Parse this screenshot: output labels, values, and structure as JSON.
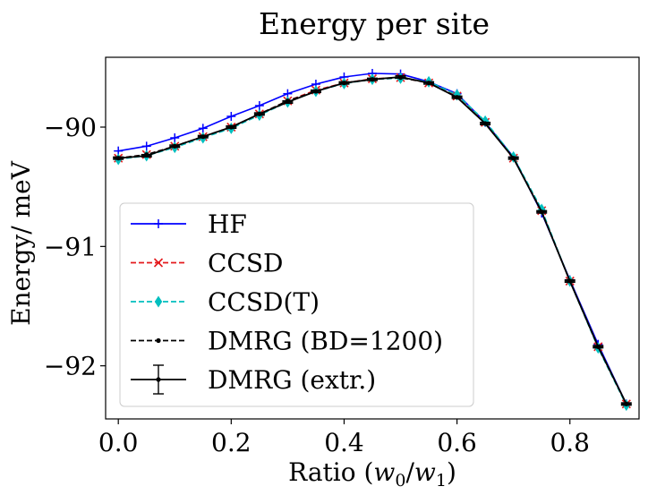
{
  "chart_data": {
    "type": "line",
    "title": "Energy per site",
    "xlabel": "Ratio (w0/w1)",
    "xlabel_parts": {
      "prefix": "Ratio (",
      "var1": "w",
      "sub1": "0",
      "slash": "/",
      "var2": "w",
      "sub2": "1",
      "suffix": ")"
    },
    "ylabel": "Energy/ meV",
    "xlim": [
      -0.0225,
      0.9225
    ],
    "ylim": [
      -92.445,
      -89.415
    ],
    "x_ticks": [
      0.0,
      0.2,
      0.4,
      0.6,
      0.8
    ],
    "x_tick_labels": [
      "0.0",
      "0.2",
      "0.4",
      "0.6",
      "0.8"
    ],
    "y_ticks": [
      -92,
      -91,
      -90
    ],
    "y_tick_labels": [
      "−92",
      "−91",
      "−90"
    ],
    "grid": false,
    "legend_position": "lower-left",
    "x": [
      0.0,
      0.05,
      0.1,
      0.15,
      0.2,
      0.25,
      0.3,
      0.35,
      0.4,
      0.45,
      0.5,
      0.55,
      0.6,
      0.65,
      0.7,
      0.75,
      0.8,
      0.85,
      0.9
    ],
    "series": [
      {
        "name": "HF",
        "color": "#0000ff",
        "dash": "solid",
        "marker": "plus",
        "values": [
          -90.2,
          -90.16,
          -90.09,
          -90.01,
          -89.91,
          -89.82,
          -89.72,
          -89.64,
          -89.58,
          -89.55,
          -89.555,
          -89.62,
          -89.72,
          -89.96,
          -90.25,
          -90.72,
          -91.28,
          -91.82,
          -92.32
        ]
      },
      {
        "name": "CCSD",
        "color": "#e41a1c",
        "dash": "dashed",
        "marker": "x",
        "values": [
          -90.26,
          -90.23,
          -90.16,
          -90.08,
          -90.0,
          -89.89,
          -89.78,
          -89.69,
          -89.63,
          -89.595,
          -89.585,
          -89.63,
          -89.74,
          -89.96,
          -90.26,
          -90.7,
          -91.29,
          -91.84,
          -92.32
        ]
      },
      {
        "name": "CCSD(T)",
        "color": "#00bfbf",
        "dash": "dashed",
        "marker": "diamond",
        "values": [
          -90.27,
          -90.24,
          -90.17,
          -90.09,
          -90.01,
          -89.9,
          -89.79,
          -89.7,
          -89.635,
          -89.6,
          -89.59,
          -89.62,
          -89.73,
          -89.95,
          -90.25,
          -90.69,
          -91.29,
          -91.85,
          -92.33
        ]
      },
      {
        "name": "DMRG (BD=1200)",
        "color": "#000000",
        "dash": "dashed",
        "marker": "dot",
        "values": [
          -90.26,
          -90.23,
          -90.16,
          -90.08,
          -90.0,
          -89.89,
          -89.78,
          -89.7,
          -89.63,
          -89.6,
          -89.585,
          -89.63,
          -89.75,
          -89.97,
          -90.26,
          -90.71,
          -91.29,
          -91.84,
          -92.32
        ]
      },
      {
        "name": "DMRG (extr.)",
        "color": "#000000",
        "dash": "solid",
        "marker": "errorbar",
        "values": [
          -90.26,
          -90.24,
          -90.16,
          -90.08,
          -90.0,
          -89.89,
          -89.79,
          -89.7,
          -89.63,
          -89.6,
          -89.58,
          -89.63,
          -89.75,
          -89.97,
          -90.26,
          -90.71,
          -91.29,
          -91.84,
          -92.32
        ],
        "error": [
          0.01,
          0.01,
          0.01,
          0.01,
          0.01,
          0.01,
          0.01,
          0.01,
          0.01,
          0.01,
          0.01,
          0.01,
          0.01,
          0.01,
          0.01,
          0.01,
          0.01,
          0.01,
          0.01
        ]
      }
    ]
  }
}
